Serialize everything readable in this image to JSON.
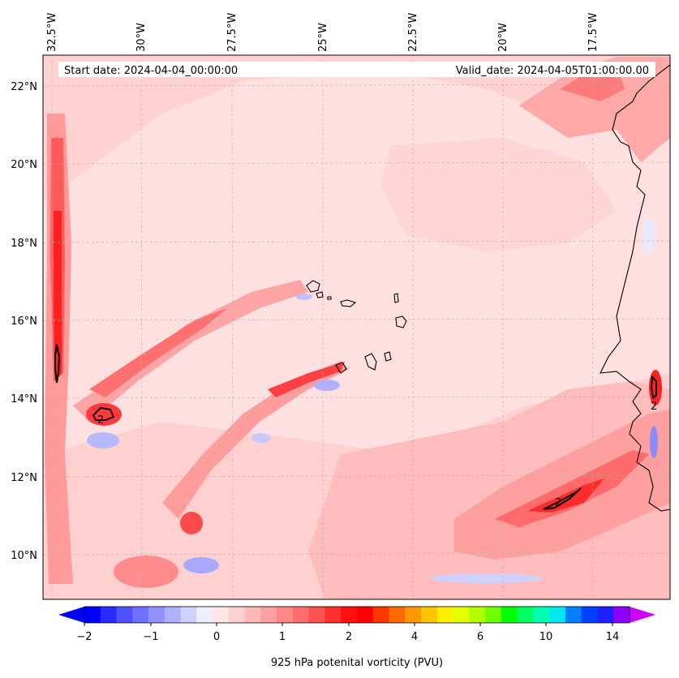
{
  "map": {
    "start_date": "Start date: 2024-04-04_00:00:00",
    "valid_date": "Valid_date: 2024-04-05T01:00:00.00",
    "lon_labels": [
      "32.5°W",
      "30°W",
      "27.5°W",
      "25°W",
      "22.5°W",
      "20°W",
      "17.5°W"
    ],
    "lat_labels": [
      "22°N",
      "20°N",
      "18°N",
      "16°N",
      "14°N",
      "12°N",
      "10°N"
    ],
    "contour_labels": [
      "2",
      "2",
      "2"
    ]
  },
  "colorbar": {
    "title": "925 hPa potenital vorticity (PVU)",
    "tick_labels": [
      "−2",
      "−1",
      "0",
      "1",
      "2",
      "4",
      "6",
      "10",
      "14"
    ],
    "colors": [
      "#0000ff",
      "#2a2aff",
      "#4f4fff",
      "#7070ff",
      "#9090ff",
      "#b0b0ff",
      "#d0d0ff",
      "#eeeeff",
      "#ffe6e6",
      "#ffd0d0",
      "#ffb8b8",
      "#ffa0a0",
      "#ff8686",
      "#ff6c6c",
      "#ff5050",
      "#ff3030",
      "#ff1010",
      "#ff0000",
      "#ff3600",
      "#ff6a00",
      "#ff9800",
      "#ffc400",
      "#ffee00",
      "#e6ff00",
      "#b0ff00",
      "#70ff00",
      "#00ff00",
      "#00ff60",
      "#00ffb0",
      "#00e8f0",
      "#0080ff",
      "#0040ff",
      "#2020ff",
      "#9000ff"
    ],
    "extend_left_color": "#0000ff",
    "extend_right_color": "#cc00ff"
  }
}
